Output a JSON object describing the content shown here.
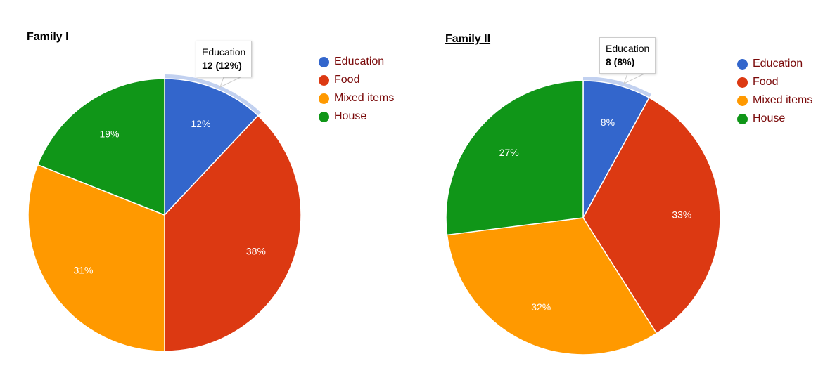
{
  "chart_data": [
    {
      "type": "pie",
      "title": "Family I",
      "categories": [
        "Education",
        "Food",
        "Mixed items",
        "House"
      ],
      "values": [
        12,
        38,
        31,
        19
      ],
      "labels": [
        "12%",
        "38%",
        "31%",
        "19%"
      ],
      "colors": [
        "#3366cc",
        "#dc3912",
        "#ff9900",
        "#109618"
      ],
      "legend_position": "right",
      "tooltip": {
        "category": "Education",
        "value_text": "12 (12%)"
      }
    },
    {
      "type": "pie",
      "title": "Family II",
      "categories": [
        "Education",
        "Food",
        "Mixed items",
        "House"
      ],
      "values": [
        8,
        33,
        32,
        27
      ],
      "labels": [
        "8%",
        "33%",
        "32%",
        "27%"
      ],
      "colors": [
        "#3366cc",
        "#dc3912",
        "#ff9900",
        "#109618"
      ],
      "legend_position": "right",
      "tooltip": {
        "category": "Education",
        "value_text": "8 (8%)"
      }
    }
  ],
  "charts": [
    {
      "title": "Family I",
      "legend": [
        "Education",
        "Food",
        "Mixed items",
        "House"
      ],
      "tooltip_category": "Education",
      "tooltip_value": "12 (12%)"
    },
    {
      "title": "Family II",
      "legend": [
        "Education",
        "Food",
        "Mixed items",
        "House"
      ],
      "tooltip_category": "Education",
      "tooltip_value": "8 (8%)"
    }
  ]
}
